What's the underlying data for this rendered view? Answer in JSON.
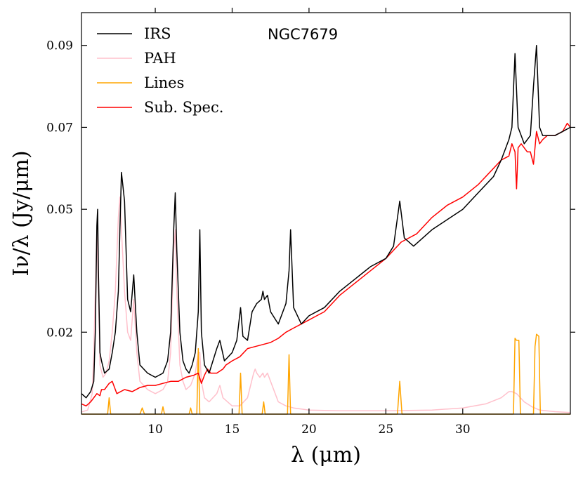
{
  "chart_data": {
    "type": "line",
    "title": "NGC7679",
    "xlabel": "λ (μm)",
    "ylabel": "Iν/λ (Jy/μm)",
    "xlim": [
      5.2,
      37.0
    ],
    "ylim": [
      0.0,
      0.098
    ],
    "xticks": [
      10,
      15,
      20,
      25,
      30
    ],
    "xtick_labels": [
      "10",
      "15",
      "20",
      "25",
      "30"
    ],
    "yticks": [
      0.02,
      0.05,
      0.07,
      0.09
    ],
    "ytick_labels": [
      "0.02",
      "0.05",
      "0.07",
      "0.09"
    ],
    "legend_position": "top-left",
    "series": [
      {
        "name": "IRS",
        "color": "#000000",
        "x": [
          5.2,
          5.5,
          5.8,
          6.0,
          6.1,
          6.2,
          6.25,
          6.3,
          6.4,
          6.5,
          6.7,
          7.0,
          7.2,
          7.4,
          7.6,
          7.7,
          7.8,
          8.0,
          8.2,
          8.4,
          8.6,
          8.8,
          9.0,
          9.5,
          10.0,
          10.5,
          10.8,
          11.0,
          11.2,
          11.3,
          11.4,
          11.6,
          11.8,
          12.0,
          12.2,
          12.4,
          12.6,
          12.8,
          12.9,
          13.0,
          13.2,
          13.5,
          14.0,
          14.2,
          14.5,
          15.0,
          15.3,
          15.55,
          15.7,
          16.0,
          16.3,
          16.6,
          16.9,
          17.0,
          17.1,
          17.3,
          17.5,
          18.0,
          18.5,
          18.7,
          18.8,
          19.0,
          19.5,
          20.0,
          21.0,
          22.0,
          23.0,
          24.0,
          25.0,
          25.5,
          25.9,
          26.2,
          26.8,
          28.0,
          30.0,
          31.0,
          32.0,
          32.5,
          32.8,
          33.0,
          33.2,
          33.4,
          33.6,
          33.8,
          34.0,
          34.2,
          34.4,
          34.6,
          34.8,
          35.0,
          35.2,
          35.5,
          36.0,
          36.5,
          37.0
        ],
        "y": [
          0.005,
          0.004,
          0.0055,
          0.008,
          0.02,
          0.046,
          0.05,
          0.035,
          0.015,
          0.013,
          0.01,
          0.011,
          0.015,
          0.02,
          0.03,
          0.045,
          0.059,
          0.052,
          0.028,
          0.025,
          0.034,
          0.02,
          0.012,
          0.01,
          0.009,
          0.01,
          0.013,
          0.02,
          0.045,
          0.054,
          0.04,
          0.02,
          0.013,
          0.011,
          0.01,
          0.012,
          0.015,
          0.025,
          0.045,
          0.02,
          0.012,
          0.01,
          0.016,
          0.018,
          0.013,
          0.015,
          0.018,
          0.026,
          0.019,
          0.018,
          0.025,
          0.027,
          0.028,
          0.03,
          0.028,
          0.029,
          0.025,
          0.022,
          0.027,
          0.035,
          0.045,
          0.026,
          0.022,
          0.024,
          0.026,
          0.03,
          0.033,
          0.036,
          0.038,
          0.041,
          0.052,
          0.043,
          0.041,
          0.045,
          0.05,
          0.054,
          0.058,
          0.062,
          0.065,
          0.067,
          0.07,
          0.088,
          0.07,
          0.068,
          0.066,
          0.067,
          0.068,
          0.08,
          0.09,
          0.07,
          0.068,
          0.068,
          0.068,
          0.069,
          0.07
        ]
      },
      {
        "name": "PAH",
        "color": "#ffc0cb",
        "x": [
          5.2,
          5.6,
          5.9,
          6.0,
          6.1,
          6.2,
          6.3,
          6.4,
          6.6,
          6.8,
          7.0,
          7.2,
          7.4,
          7.6,
          7.7,
          7.8,
          8.0,
          8.2,
          8.4,
          8.6,
          8.8,
          9.0,
          9.5,
          10.0,
          10.5,
          10.8,
          11.0,
          11.2,
          11.3,
          11.4,
          11.6,
          11.8,
          12.0,
          12.3,
          12.6,
          12.8,
          12.9,
          13.0,
          13.2,
          13.5,
          14.0,
          14.2,
          14.4,
          15.0,
          15.5,
          16.0,
          16.4,
          16.5,
          16.6,
          16.8,
          17.0,
          17.1,
          17.3,
          17.5,
          18.0,
          18.5,
          19.0,
          20.0,
          22.0,
          25.0,
          28.0,
          30.0,
          31.5,
          32.5,
          33.0,
          33.2,
          33.5,
          34.0,
          34.5,
          35.0,
          36.0,
          37.0
        ],
        "y": [
          0.0005,
          0.001,
          0.005,
          0.015,
          0.03,
          0.045,
          0.03,
          0.012,
          0.009,
          0.01,
          0.013,
          0.02,
          0.03,
          0.048,
          0.053,
          0.045,
          0.03,
          0.02,
          0.018,
          0.028,
          0.015,
          0.008,
          0.006,
          0.005,
          0.006,
          0.008,
          0.015,
          0.04,
          0.045,
          0.03,
          0.012,
          0.008,
          0.006,
          0.007,
          0.01,
          0.015,
          0.015,
          0.008,
          0.004,
          0.003,
          0.005,
          0.007,
          0.004,
          0.002,
          0.002,
          0.004,
          0.01,
          0.011,
          0.01,
          0.009,
          0.01,
          0.009,
          0.01,
          0.008,
          0.003,
          0.002,
          0.0015,
          0.001,
          0.0008,
          0.0008,
          0.001,
          0.0015,
          0.0025,
          0.004,
          0.0055,
          0.0055,
          0.005,
          0.003,
          0.0018,
          0.001,
          0.0006,
          0.0004
        ]
      },
      {
        "name": "Lines",
        "color": "#ffa500",
        "x": [
          5.2,
          6.9,
          7.0,
          7.1,
          9.0,
          9.15,
          9.3,
          10.4,
          10.5,
          10.6,
          12.2,
          12.3,
          12.4,
          12.7,
          12.8,
          12.9,
          15.45,
          15.55,
          15.65,
          16.95,
          17.05,
          17.15,
          18.6,
          18.7,
          18.8,
          25.75,
          25.9,
          26.05,
          33.3,
          33.4,
          33.5,
          33.65,
          33.75,
          34.6,
          34.7,
          34.8,
          34.95,
          35.05,
          37.0
        ],
        "y": [
          0,
          0,
          0.004,
          0,
          0,
          0.0015,
          0,
          0,
          0.0018,
          0,
          0,
          0.0015,
          0,
          0,
          0.016,
          0,
          0,
          0.01,
          0,
          0,
          0.003,
          0,
          0,
          0.0145,
          0,
          0,
          0.008,
          0,
          0,
          0.0185,
          0.018,
          0.018,
          0,
          0,
          0.0165,
          0.0195,
          0.019,
          0,
          0
        ]
      },
      {
        "name": "Sub. Spec.",
        "color": "#ff0000",
        "x": [
          5.2,
          5.5,
          5.8,
          6.0,
          6.2,
          6.4,
          6.5,
          6.7,
          7.0,
          7.2,
          7.5,
          8.0,
          8.5,
          9.0,
          9.5,
          10.0,
          10.5,
          11.0,
          11.5,
          12.0,
          12.5,
          12.8,
          13.0,
          13.2,
          13.4,
          13.6,
          14.0,
          14.4,
          14.6,
          15.0,
          15.5,
          16.0,
          16.5,
          17.0,
          17.5,
          18.0,
          18.5,
          19.0,
          19.5,
          20.0,
          20.5,
          21.0,
          22.0,
          23.0,
          24.0,
          25.0,
          25.5,
          26.0,
          26.5,
          27.0,
          28.0,
          29.0,
          30.0,
          31.0,
          32.0,
          32.5,
          33.0,
          33.2,
          33.4,
          33.5,
          33.6,
          33.8,
          34.0,
          34.2,
          34.4,
          34.6,
          34.8,
          35.0,
          35.2,
          35.5,
          36.0,
          36.5,
          36.8,
          37.0
        ],
        "y": [
          0.0025,
          0.002,
          0.003,
          0.004,
          0.005,
          0.0045,
          0.006,
          0.006,
          0.0075,
          0.008,
          0.005,
          0.006,
          0.0055,
          0.0065,
          0.007,
          0.007,
          0.0075,
          0.008,
          0.008,
          0.009,
          0.0095,
          0.01,
          0.0075,
          0.0095,
          0.011,
          0.01,
          0.01,
          0.011,
          0.012,
          0.013,
          0.014,
          0.016,
          0.0165,
          0.017,
          0.0175,
          0.0185,
          0.02,
          0.021,
          0.022,
          0.023,
          0.024,
          0.025,
          0.029,
          0.032,
          0.035,
          0.038,
          0.04,
          0.042,
          0.043,
          0.044,
          0.048,
          0.051,
          0.053,
          0.056,
          0.06,
          0.062,
          0.063,
          0.066,
          0.064,
          0.055,
          0.065,
          0.066,
          0.065,
          0.064,
          0.064,
          0.061,
          0.069,
          0.066,
          0.067,
          0.068,
          0.068,
          0.069,
          0.071,
          0.07
        ]
      }
    ]
  }
}
